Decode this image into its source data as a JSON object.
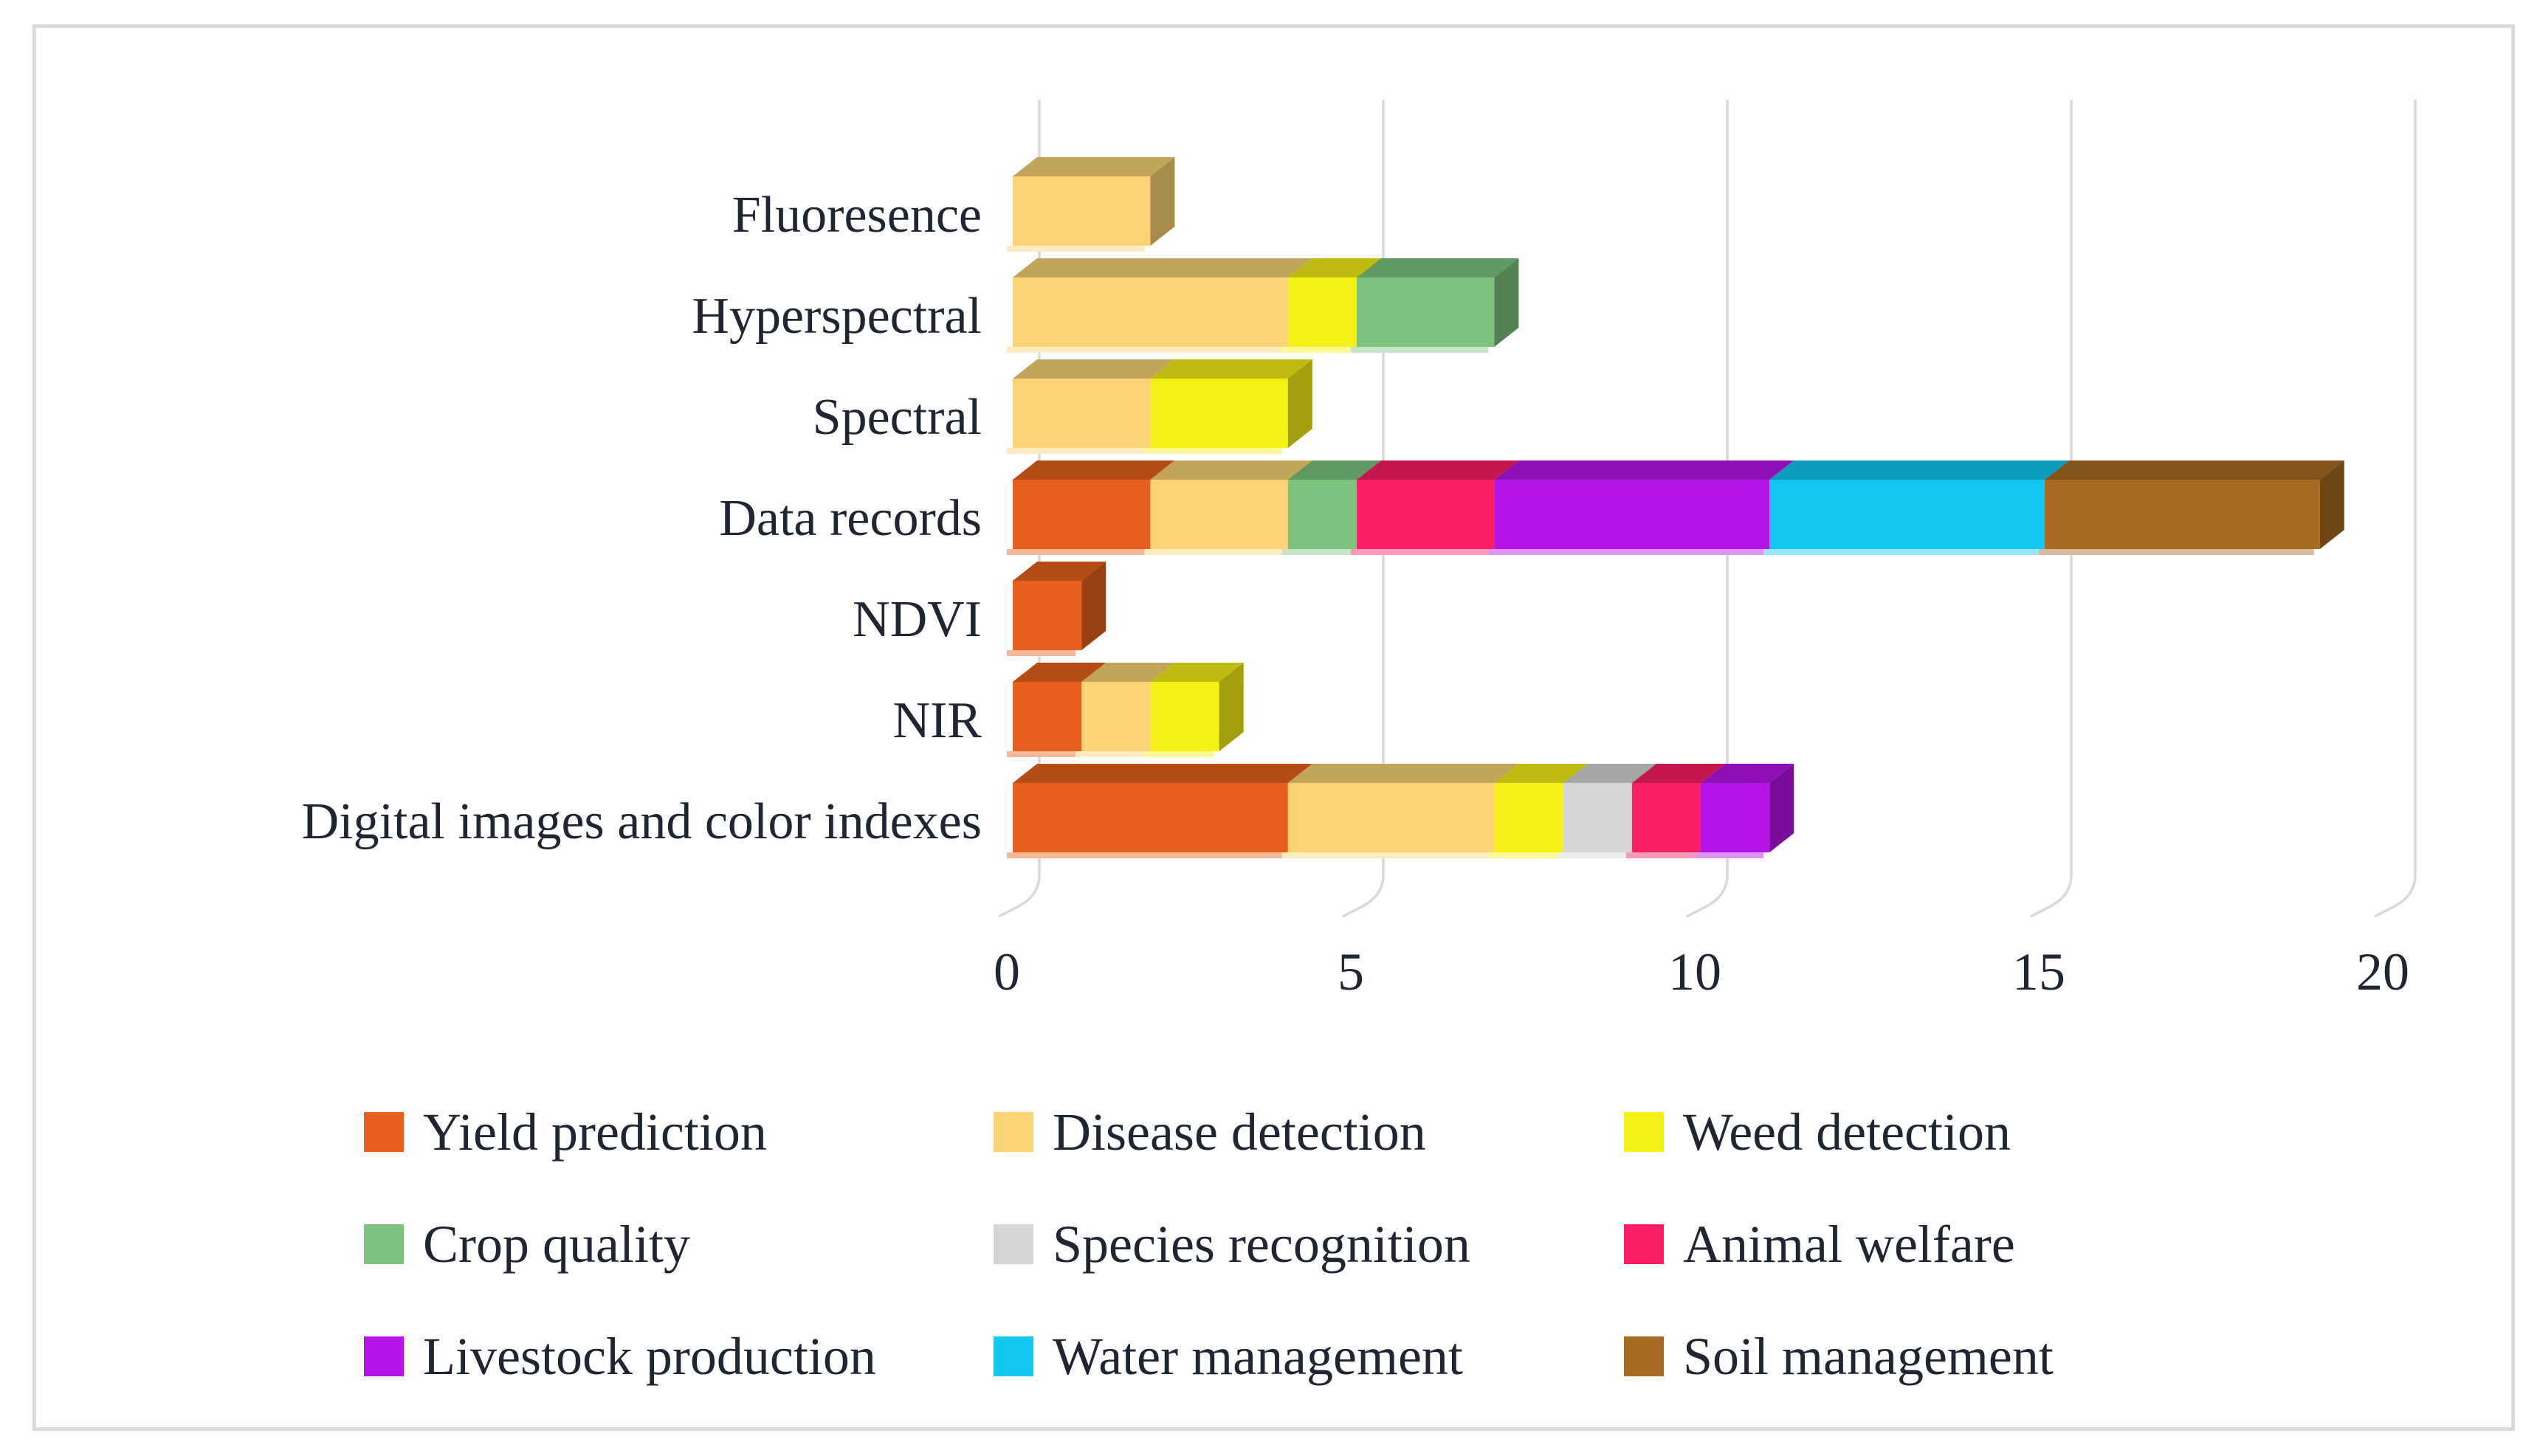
{
  "chart_data": {
    "type": "bar",
    "orientation": "horizontal",
    "stacked": true,
    "effect": "3d",
    "title": "",
    "xlabel": "",
    "ylabel": "",
    "xlim": [
      0,
      20
    ],
    "xticks": [
      0,
      5,
      10,
      15,
      20
    ],
    "grid": true,
    "legend_position": "bottom",
    "categories": [
      "Fluoresence",
      "Hyperspectral",
      "Spectral",
      "Data records",
      "NDVI",
      "NIR",
      "Digital images and color indexes"
    ],
    "series": [
      {
        "name": "Yield prediction",
        "color": "#E8611C",
        "values": [
          0,
          0,
          0,
          2,
          1,
          1,
          4
        ]
      },
      {
        "name": "Disease detection",
        "color": "#FAD474",
        "values": [
          2,
          4,
          2,
          2,
          0,
          1,
          3
        ]
      },
      {
        "name": "Weed detection",
        "color": "#F5F116",
        "values": [
          0,
          1,
          2,
          0,
          0,
          1,
          1
        ]
      },
      {
        "name": "Crop quality",
        "color": "#7CC47E",
        "values": [
          0,
          2,
          0,
          1,
          0,
          0,
          0
        ]
      },
      {
        "name": "Species recognition",
        "color": "#D6D6D6",
        "values": [
          0,
          0,
          0,
          0,
          0,
          0,
          1
        ]
      },
      {
        "name": "Animal welfare",
        "color": "#FA1E64",
        "values": [
          0,
          0,
          0,
          2,
          0,
          0,
          1
        ]
      },
      {
        "name": "Livestock production",
        "color": "#B414E6",
        "values": [
          0,
          0,
          0,
          4,
          0,
          0,
          1
        ]
      },
      {
        "name": "Water management",
        "color": "#12C8F2",
        "values": [
          0,
          0,
          0,
          4,
          0,
          0,
          0
        ]
      },
      {
        "name": "Soil management",
        "color": "#A76B22",
        "values": [
          0,
          0,
          0,
          4,
          0,
          0,
          0
        ]
      }
    ]
  },
  "colors": {
    "background": "#FFFFFF",
    "frame_border": "#D9DBDD",
    "gridline": "#D9D9D9",
    "text": "#1F2533"
  }
}
